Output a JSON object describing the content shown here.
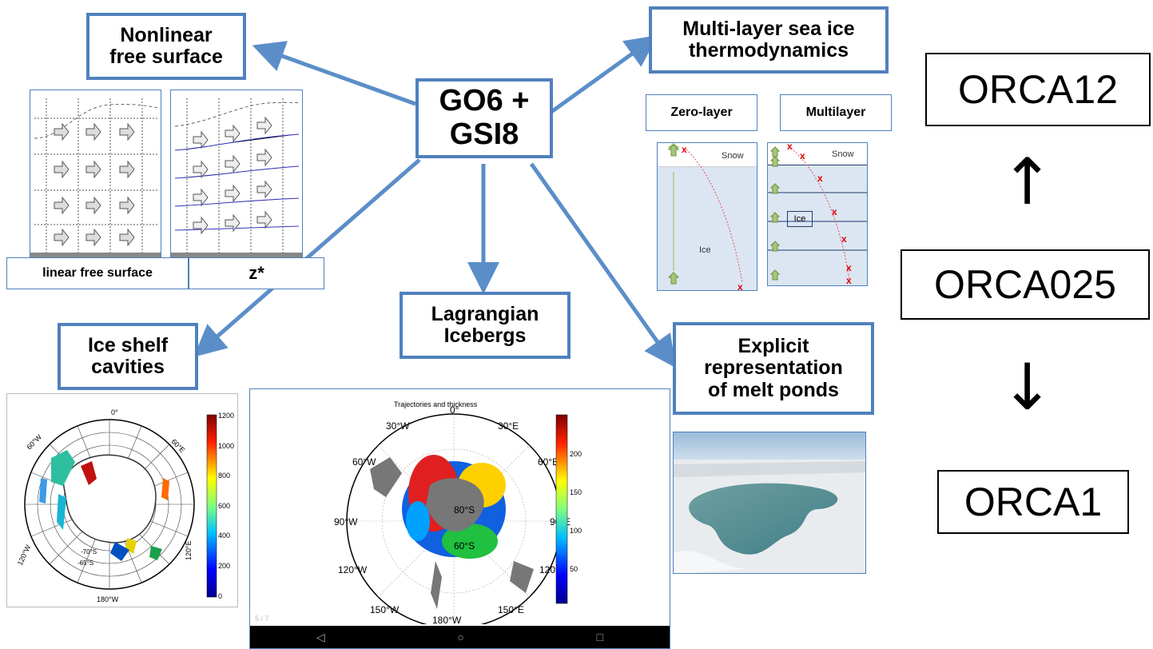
{
  "center": {
    "line1": "GO6 +",
    "line2": "GSI8"
  },
  "nodes": {
    "nonlinear": {
      "line1": "Nonlinear",
      "line2": "free surface"
    },
    "multilayer": {
      "line1": "Multi-layer sea ice",
      "line2": "thermodynamics"
    },
    "lagrangian": {
      "line1": "Lagrangian",
      "line2": "Icebergs"
    },
    "iceshelf": {
      "line1": "Ice shelf",
      "line2": "cavities"
    },
    "meltponds": {
      "line1": "Explicit",
      "line2": "representation",
      "line3": "of melt ponds"
    }
  },
  "free_surface_panel": {
    "label_linear": "linear free surface",
    "label_zstar": "z*"
  },
  "sea_ice_panel": {
    "zero_layer": "Zero-layer",
    "multilayer": "Multilayer",
    "snow": "Snow",
    "ice": "Ice",
    "marker": "x"
  },
  "ice_shelf_map": {
    "colorbar_ticks": [
      "1200",
      "1000",
      "800",
      "600",
      "400",
      "200",
      "0"
    ],
    "lon_labels": [
      "0°",
      "60°W",
      "60°E",
      "120°W",
      "120°E",
      "180°W"
    ],
    "lat_labels": [
      "-70°S",
      "-65°S"
    ],
    "colors": {
      "low": "#00008f",
      "high": "#800000"
    }
  },
  "iceberg_map": {
    "title": "Trajectories and thickness",
    "colorbar_ticks": [
      "200",
      "150",
      "100",
      "50"
    ],
    "lon_labels": [
      "0°",
      "30°W",
      "30°E",
      "60°W",
      "60°E",
      "90°W",
      "90°E",
      "120°W",
      "120°E",
      "150°W",
      "150°E",
      "180°W"
    ],
    "lat_labels": [
      "80°S",
      "60°S"
    ],
    "page_indicator": "5 / 7",
    "nav_glyphs": {
      "back": "◁",
      "home": "○",
      "recent": "□"
    }
  },
  "resolutions": {
    "top": "ORCA12",
    "middle": "ORCA025",
    "bottom": "ORCA1",
    "arrow_up": "↑",
    "arrow_down": "↓"
  },
  "colors": {
    "accent": "#4f81bd",
    "arrow": "#5b8ec9"
  }
}
